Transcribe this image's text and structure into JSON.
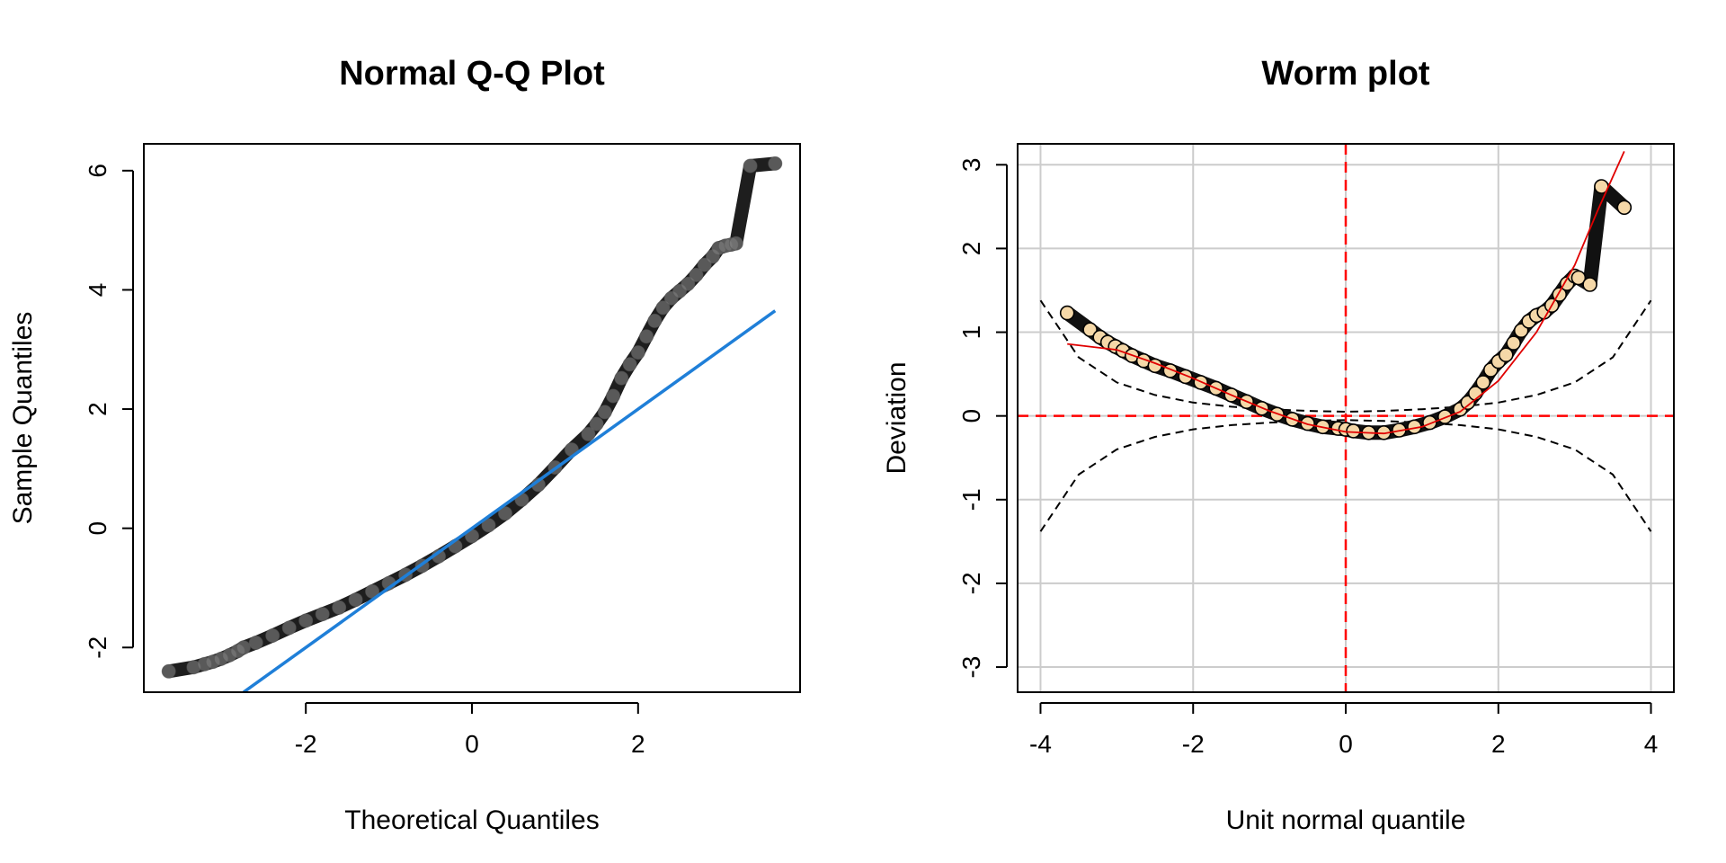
{
  "chart_data": [
    {
      "type": "scatter",
      "title": "Normal Q-Q Plot",
      "xlabel": "Theoretical Quantiles",
      "ylabel": "Sample Quantiles",
      "xlim": [
        -3.95,
        3.95
      ],
      "ylim": [
        -2.75,
        6.45
      ],
      "x_ticks": [
        -2,
        0,
        2
      ],
      "y_ticks": [
        -2,
        0,
        2,
        4,
        6
      ],
      "grid": false,
      "point_color": "#808080",
      "line_color": "#1f7fd8",
      "series": [
        {
          "kind": "points",
          "x": [
            -3.65,
            -3.35,
            -3.22,
            -3.12,
            -3.02,
            -2.92,
            -2.82,
            -2.75,
            -2.6,
            -2.4,
            -2.2,
            -2.0,
            -1.8,
            -1.6,
            -1.4,
            -1.2,
            -1.0,
            -0.8,
            -0.6,
            -0.4,
            -0.2,
            0.0,
            0.2,
            0.4,
            0.6,
            0.8,
            1.0,
            1.2,
            1.4,
            1.5,
            1.6,
            1.7,
            1.8,
            1.9,
            2.0,
            2.1,
            2.2,
            2.3,
            2.4,
            2.5,
            2.6,
            2.7,
            2.8,
            2.9,
            2.97,
            3.05,
            3.12,
            3.18,
            3.35,
            3.65
          ],
          "y": [
            -2.4,
            -2.33,
            -2.28,
            -2.24,
            -2.19,
            -2.13,
            -2.06,
            -2.0,
            -1.92,
            -1.8,
            -1.67,
            -1.55,
            -1.44,
            -1.33,
            -1.2,
            -1.06,
            -0.92,
            -0.78,
            -0.63,
            -0.47,
            -0.3,
            -0.13,
            0.05,
            0.25,
            0.48,
            0.73,
            1.02,
            1.32,
            1.58,
            1.75,
            1.95,
            2.22,
            2.52,
            2.75,
            2.95,
            3.22,
            3.48,
            3.7,
            3.86,
            3.98,
            4.1,
            4.25,
            4.42,
            4.56,
            4.7,
            4.74,
            4.76,
            4.78,
            6.08,
            6.12
          ]
        },
        {
          "kind": "line",
          "x": [
            -2.75,
            3.65
          ],
          "y": [
            -2.75,
            3.65
          ]
        }
      ]
    },
    {
      "type": "scatter",
      "title": "Worm plot",
      "xlabel": "Unit normal quantile",
      "ylabel": "Deviation",
      "xlim": [
        -4.3,
        4.3
      ],
      "ylim": [
        -3.3,
        3.25
      ],
      "x_ticks": [
        -4,
        -2,
        0,
        2,
        4
      ],
      "y_ticks": [
        -3,
        -2,
        -1,
        0,
        1,
        2,
        3
      ],
      "grid": true,
      "point_color": "#f5d8a8",
      "point_stroke": "#000000",
      "ref_line_color": "#ff0000",
      "fit_color": "#e00000",
      "series": [
        {
          "kind": "points",
          "x": [
            -3.65,
            -3.35,
            -3.22,
            -3.12,
            -3.02,
            -2.92,
            -2.8,
            -2.65,
            -2.5,
            -2.3,
            -2.1,
            -1.9,
            -1.7,
            -1.5,
            -1.3,
            -1.1,
            -0.9,
            -0.7,
            -0.5,
            -0.3,
            -0.1,
            0.0,
            0.1,
            0.3,
            0.5,
            0.7,
            0.9,
            1.1,
            1.3,
            1.5,
            1.6,
            1.7,
            1.8,
            1.9,
            2.0,
            2.1,
            2.2,
            2.3,
            2.4,
            2.5,
            2.6,
            2.7,
            2.8,
            2.9,
            3.0,
            3.05,
            3.2,
            3.35,
            3.65
          ],
          "y": [
            1.23,
            1.03,
            0.94,
            0.88,
            0.83,
            0.78,
            0.72,
            0.66,
            0.6,
            0.54,
            0.47,
            0.4,
            0.33,
            0.25,
            0.17,
            0.09,
            0.02,
            -0.04,
            -0.09,
            -0.13,
            -0.15,
            -0.16,
            -0.18,
            -0.2,
            -0.2,
            -0.17,
            -0.13,
            -0.08,
            -0.01,
            0.08,
            0.16,
            0.27,
            0.4,
            0.55,
            0.65,
            0.73,
            0.87,
            1.02,
            1.13,
            1.2,
            1.24,
            1.32,
            1.45,
            1.58,
            1.67,
            1.65,
            1.57,
            2.74,
            2.49
          ]
        },
        {
          "kind": "fit",
          "x": [
            -3.65,
            -3.0,
            -2.5,
            -2.0,
            -1.5,
            -1.0,
            -0.5,
            0.0,
            0.5,
            1.0,
            1.5,
            2.0,
            2.5,
            3.0,
            3.3,
            3.65
          ],
          "y": [
            0.86,
            0.79,
            0.63,
            0.45,
            0.25,
            0.06,
            -0.1,
            -0.19,
            -0.21,
            -0.13,
            0.05,
            0.42,
            1.0,
            1.8,
            2.45,
            3.16
          ]
        },
        {
          "kind": "confidence-upper",
          "x": [
            -4,
            -3.5,
            -3,
            -2.5,
            -2,
            -1.5,
            -1,
            -0.5,
            0,
            0.5,
            1,
            1.5,
            2,
            2.5,
            3,
            3.5,
            4
          ],
          "y": [
            1.38,
            0.7,
            0.4,
            0.25,
            0.16,
            0.11,
            0.08,
            0.06,
            0.05,
            0.06,
            0.08,
            0.11,
            0.16,
            0.25,
            0.4,
            0.7,
            1.38
          ]
        },
        {
          "kind": "confidence-lower",
          "x": [
            -4,
            -3.5,
            -3,
            -2.5,
            -2,
            -1.5,
            -1,
            -0.5,
            0,
            0.5,
            1,
            1.5,
            2,
            2.5,
            3,
            3.5,
            4
          ],
          "y": [
            -1.38,
            -0.7,
            -0.4,
            -0.25,
            -0.16,
            -0.11,
            -0.08,
            -0.06,
            -0.05,
            -0.06,
            -0.08,
            -0.11,
            -0.16,
            -0.25,
            -0.4,
            -0.7,
            -1.38
          ]
        }
      ]
    }
  ]
}
